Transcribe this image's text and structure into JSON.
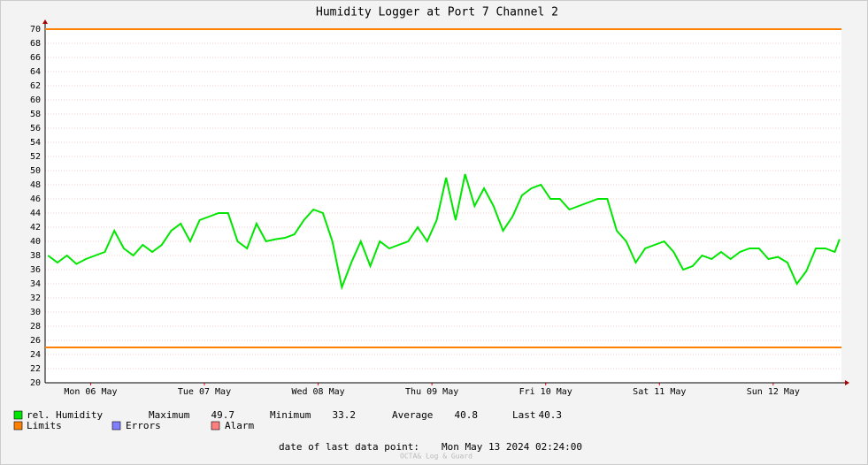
{
  "chart_data": {
    "type": "line",
    "title": "Humidity Logger at Port 7 Channel 2",
    "x": [
      3,
      5,
      7,
      9,
      11,
      13,
      15,
      17,
      19,
      21,
      23,
      25,
      27,
      29,
      31,
      33,
      35,
      37,
      39,
      41,
      43,
      45,
      47,
      49,
      51,
      53,
      55,
      57,
      59,
      61,
      63,
      65,
      67,
      69,
      71,
      73,
      75,
      77,
      79,
      81,
      83,
      85,
      87,
      89,
      91,
      93,
      95,
      97,
      99,
      101,
      103,
      105,
      107,
      109,
      111,
      113,
      115,
      117,
      119,
      121,
      123,
      125,
      127,
      129,
      131,
      133,
      135,
      137,
      139,
      141,
      143,
      145,
      147,
      149,
      151,
      153,
      155,
      157,
      159,
      161,
      163,
      165,
      167,
      169,
      170
    ],
    "series": [
      {
        "name": "rel. Humidity",
        "color": "#00e600",
        "values": [
          38,
          37,
          38,
          36.8,
          37.5,
          38,
          38.5,
          41.5,
          39,
          38,
          39.5,
          38.5,
          39.5,
          41.5,
          42.5,
          40,
          43,
          43.5,
          44,
          44,
          40,
          39,
          42.5,
          40,
          40.3,
          40.5,
          41,
          43,
          44.5,
          44,
          40,
          33.5,
          37,
          40,
          36.5,
          40,
          39,
          39.5,
          40,
          42,
          40,
          43,
          49,
          43,
          49.5,
          45,
          47.5,
          45,
          41.5,
          43.5,
          46.5,
          47.5,
          48,
          46,
          46,
          44.5,
          45,
          45.5,
          46,
          46,
          41.5,
          40,
          37,
          39,
          39.5,
          40,
          38.5,
          36,
          36.5,
          38,
          37.5,
          38.5,
          37.5,
          38.5,
          39,
          39,
          37.5,
          37.8,
          37,
          34,
          35.8,
          39,
          39,
          38.5,
          40.3
        ]
      }
    ],
    "limits": {
      "name": "Limits",
      "color": "#ff7f00",
      "values": [
        25,
        70
      ]
    },
    "legend_extra": [
      {
        "name": "Errors",
        "color": "#7f7fff"
      },
      {
        "name": "Alarm",
        "color": "#ff7f7f"
      }
    ],
    "stats": [
      {
        "label": "Maximum",
        "value": 49.7
      },
      {
        "label": "Minimum",
        "value": 33.2
      },
      {
        "label": "Average",
        "value": 40.8
      },
      {
        "label": "Last",
        "value": 40.3
      }
    ],
    "xlim": [
      2.4,
      170.4
    ],
    "xticks": [
      {
        "value": 12,
        "label": "Mon 06 May"
      },
      {
        "value": 36,
        "label": "Tue 07 May"
      },
      {
        "value": 60,
        "label": "Wed 08 May"
      },
      {
        "value": 84,
        "label": "Thu 09 May"
      },
      {
        "value": 108,
        "label": "Fri 10 May"
      },
      {
        "value": 132,
        "label": "Sat 11 May"
      },
      {
        "value": 156,
        "label": "Sun 12 May"
      }
    ],
    "ylim": [
      20,
      70
    ],
    "yticks": [
      20,
      22,
      24,
      26,
      28,
      30,
      32,
      34,
      36,
      38,
      40,
      42,
      44,
      46,
      48,
      50,
      52,
      54,
      56,
      58,
      60,
      62,
      64,
      66,
      68,
      70
    ],
    "grid": true,
    "footer_label": "date of last data point:",
    "footer_date": "Mon May 13 2024 02:24:00",
    "watermark": "OCTA& Log & Guard"
  }
}
